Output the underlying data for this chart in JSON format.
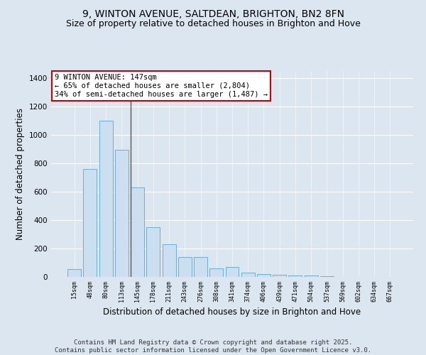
{
  "title1": "9, WINTON AVENUE, SALTDEAN, BRIGHTON, BN2 8FN",
  "title2": "Size of property relative to detached houses in Brighton and Hove",
  "xlabel": "Distribution of detached houses by size in Brighton and Hove",
  "ylabel": "Number of detached properties",
  "categories": [
    "15sqm",
    "48sqm",
    "80sqm",
    "113sqm",
    "145sqm",
    "178sqm",
    "211sqm",
    "243sqm",
    "276sqm",
    "308sqm",
    "341sqm",
    "374sqm",
    "406sqm",
    "439sqm",
    "471sqm",
    "504sqm",
    "537sqm",
    "569sqm",
    "602sqm",
    "634sqm",
    "667sqm"
  ],
  "values": [
    55,
    760,
    1100,
    895,
    630,
    350,
    230,
    140,
    140,
    60,
    70,
    30,
    20,
    15,
    10,
    8,
    3,
    2,
    1,
    1,
    1
  ],
  "bar_color": "#ccdff0",
  "bar_edge_color": "#6aaed6",
  "highlight_index": 4,
  "highlight_line_color": "#555555",
  "annotation_text": "9 WINTON AVENUE: 147sqm\n← 65% of detached houses are smaller (2,804)\n34% of semi-detached houses are larger (1,487) →",
  "annotation_box_color": "#ffffff",
  "annotation_box_edge": "#cc0000",
  "ylim": [
    0,
    1450
  ],
  "yticks": [
    0,
    200,
    400,
    600,
    800,
    1000,
    1200,
    1400
  ],
  "background_color": "#dce6f0",
  "footer": "Contains HM Land Registry data © Crown copyright and database right 2025.\nContains public sector information licensed under the Open Government Licence v3.0.",
  "title1_fontsize": 10,
  "title2_fontsize": 9,
  "xlabel_fontsize": 8.5,
  "ylabel_fontsize": 8.5,
  "annot_fontsize": 7.5,
  "footer_fontsize": 6.5
}
